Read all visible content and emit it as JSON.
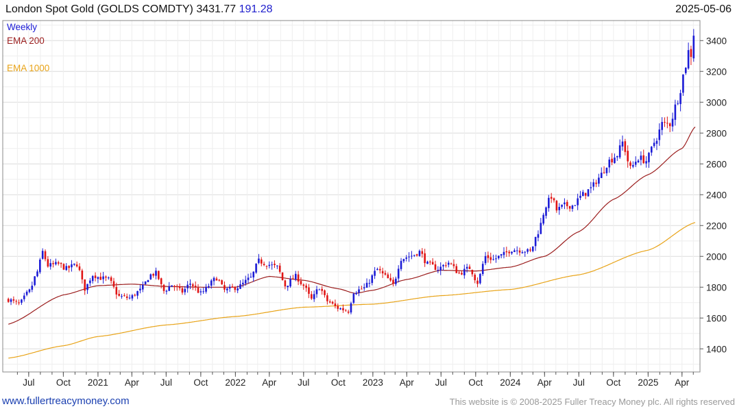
{
  "header": {
    "title": "London Spot Gold (GOLDS COMDTY) 3431.77",
    "change": "191.28",
    "date": "2025-05-06"
  },
  "footer": {
    "site": "www.fullertreacymoney.com",
    "copyright": "This website is © 2008-2025 Fuller Treacy Money plc. All rights reserved"
  },
  "colors": {
    "up": "#1b1bd6",
    "down": "#e01414",
    "ema200": "#9b1d1d",
    "ema1000": "#e8a317",
    "grid": "#dcdcdc"
  },
  "chart_data": {
    "type": "candlestick",
    "frequency": "Weekly",
    "ylim": [
      1250,
      3530
    ],
    "y_ticks": [
      1400,
      1600,
      1800,
      2000,
      2200,
      2400,
      2600,
      2800,
      3000,
      3200,
      3400
    ],
    "y_axis_side": "right",
    "x_ticks": [
      "Jul",
      "Oct",
      "2021",
      "Apr",
      "Jul",
      "Oct",
      "2022",
      "Apr",
      "Jul",
      "Oct",
      "2023",
      "Apr",
      "Jul",
      "Oct",
      "2024",
      "Apr",
      "Jul",
      "Oct",
      "2025",
      "Apr"
    ],
    "x_range": [
      "2020-05",
      "2025-05-06"
    ],
    "legend": [
      "Weekly",
      "EMA 200",
      "EMA 1000"
    ],
    "last_close": 3431.77,
    "last_change": 191.28,
    "close_anchors": [
      [
        "2020-05-08",
        1720
      ],
      [
        "2020-06-05",
        1690
      ],
      [
        "2020-07-03",
        1775
      ],
      [
        "2020-07-24",
        1900
      ],
      [
        "2020-08-07",
        2030
      ],
      [
        "2020-08-21",
        1940
      ],
      [
        "2020-09-18",
        1950
      ],
      [
        "2020-10-09",
        1920
      ],
      [
        "2020-11-06",
        1950
      ],
      [
        "2020-11-27",
        1790
      ],
      [
        "2020-12-18",
        1880
      ],
      [
        "2021-01-08",
        1860
      ],
      [
        "2021-01-29",
        1850
      ],
      [
        "2021-02-26",
        1740
      ],
      [
        "2021-03-26",
        1730
      ],
      [
        "2021-04-23",
        1780
      ],
      [
        "2021-05-21",
        1880
      ],
      [
        "2021-06-04",
        1890
      ],
      [
        "2021-06-25",
        1775
      ],
      [
        "2021-07-16",
        1815
      ],
      [
        "2021-08-13",
        1770
      ],
      [
        "2021-09-03",
        1825
      ],
      [
        "2021-10-01",
        1760
      ],
      [
        "2021-11-12",
        1860
      ],
      [
        "2021-12-03",
        1780
      ],
      [
        "2022-01-07",
        1800
      ],
      [
        "2022-02-11",
        1860
      ],
      [
        "2022-03-04",
        1970
      ],
      [
        "2022-03-25",
        1950
      ],
      [
        "2022-04-22",
        1930
      ],
      [
        "2022-05-13",
        1810
      ],
      [
        "2022-06-10",
        1870
      ],
      [
        "2022-07-01",
        1810
      ],
      [
        "2022-07-22",
        1720
      ],
      [
        "2022-08-12",
        1800
      ],
      [
        "2022-09-02",
        1710
      ],
      [
        "2022-09-30",
        1665
      ],
      [
        "2022-10-28",
        1645
      ],
      [
        "2022-11-11",
        1770
      ],
      [
        "2022-12-09",
        1795
      ],
      [
        "2023-01-13",
        1915
      ],
      [
        "2023-02-03",
        1870
      ],
      [
        "2023-02-24",
        1815
      ],
      [
        "2023-03-17",
        1985
      ],
      [
        "2023-04-14",
        2005
      ],
      [
        "2023-05-05",
        2030
      ],
      [
        "2023-05-26",
        1950
      ],
      [
        "2023-06-23",
        1920
      ],
      [
        "2023-07-21",
        1960
      ],
      [
        "2023-08-18",
        1890
      ],
      [
        "2023-09-15",
        1925
      ],
      [
        "2023-10-06",
        1830
      ],
      [
        "2023-10-27",
        2000
      ],
      [
        "2023-11-17",
        1980
      ],
      [
        "2023-12-08",
        2005
      ],
      [
        "2024-01-05",
        2045
      ],
      [
        "2024-02-02",
        2040
      ],
      [
        "2024-02-23",
        2030
      ],
      [
        "2024-03-15",
        2160
      ],
      [
        "2024-04-05",
        2330
      ],
      [
        "2024-04-19",
        2390
      ],
      [
        "2024-05-03",
        2300
      ],
      [
        "2024-05-24",
        2330
      ],
      [
        "2024-06-14",
        2330
      ],
      [
        "2024-07-12",
        2400
      ],
      [
        "2024-08-02",
        2440
      ],
      [
        "2024-08-23",
        2510
      ],
      [
        "2024-09-20",
        2620
      ],
      [
        "2024-10-11",
        2660
      ],
      [
        "2024-10-25",
        2740
      ],
      [
        "2024-11-15",
        2570
      ],
      [
        "2024-12-06",
        2640
      ],
      [
        "2024-12-27",
        2620
      ],
      [
        "2025-01-24",
        2770
      ],
      [
        "2025-02-07",
        2860
      ],
      [
        "2025-02-28",
        2860
      ],
      [
        "2025-03-21",
        3020
      ],
      [
        "2025-04-11",
        3240
      ],
      [
        "2025-04-18",
        3330
      ],
      [
        "2025-04-25",
        3310
      ],
      [
        "2025-05-02",
        3240
      ],
      [
        "2025-05-06",
        3432
      ]
    ],
    "ema200_anchors": [
      [
        "2020-05-08",
        1560
      ],
      [
        "2020-10-01",
        1750
      ],
      [
        "2021-01-01",
        1810
      ],
      [
        "2021-04-01",
        1820
      ],
      [
        "2021-07-01",
        1805
      ],
      [
        "2021-10-01",
        1800
      ],
      [
        "2022-01-01",
        1800
      ],
      [
        "2022-04-01",
        1870
      ],
      [
        "2022-07-01",
        1845
      ],
      [
        "2022-10-01",
        1790
      ],
      [
        "2022-11-15",
        1760
      ],
      [
        "2023-01-01",
        1780
      ],
      [
        "2023-04-01",
        1850
      ],
      [
        "2023-07-01",
        1910
      ],
      [
        "2023-10-01",
        1905
      ],
      [
        "2024-01-01",
        1930
      ],
      [
        "2024-04-01",
        2000
      ],
      [
        "2024-07-01",
        2160
      ],
      [
        "2024-10-01",
        2370
      ],
      [
        "2025-01-01",
        2530
      ],
      [
        "2025-04-01",
        2700
      ],
      [
        "2025-05-06",
        2840
      ]
    ],
    "ema1000_anchors": [
      [
        "2020-05-08",
        1340
      ],
      [
        "2020-10-01",
        1420
      ],
      [
        "2021-01-01",
        1480
      ],
      [
        "2021-07-01",
        1555
      ],
      [
        "2022-01-01",
        1610
      ],
      [
        "2022-07-01",
        1670
      ],
      [
        "2023-01-01",
        1690
      ],
      [
        "2023-07-01",
        1745
      ],
      [
        "2024-01-01",
        1785
      ],
      [
        "2024-07-01",
        1880
      ],
      [
        "2025-01-01",
        2040
      ],
      [
        "2025-05-06",
        2220
      ]
    ]
  }
}
